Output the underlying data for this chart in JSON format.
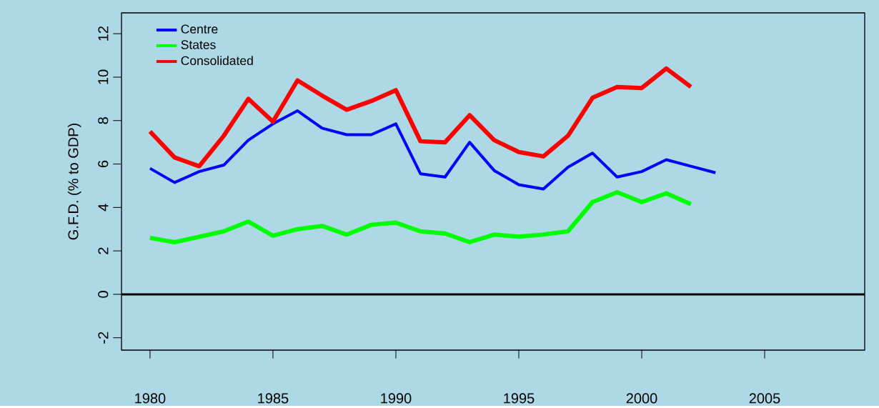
{
  "chart_data": {
    "type": "line",
    "ylabel": "G.F.D. (% to GDP)",
    "x": [
      1980,
      1981,
      1982,
      1983,
      1984,
      1985,
      1986,
      1987,
      1988,
      1989,
      1990,
      1991,
      1992,
      1993,
      1994,
      1995,
      1996,
      1997,
      1998,
      1999,
      2000,
      2001,
      2002,
      2003
    ],
    "series": [
      {
        "name": "Centre",
        "color": "#0000ff",
        "values": [
          5.8,
          5.15,
          5.65,
          5.95,
          7.1,
          7.85,
          8.45,
          7.65,
          7.35,
          7.35,
          7.85,
          5.55,
          5.4,
          7.0,
          5.7,
          5.05,
          4.85,
          5.85,
          6.5,
          5.4,
          5.65,
          6.2,
          5.9,
          5.6
        ]
      },
      {
        "name": "States",
        "color": "#00ff00",
        "values": [
          2.6,
          2.4,
          2.65,
          2.9,
          3.35,
          2.7,
          3.0,
          3.15,
          2.75,
          3.2,
          3.3,
          2.9,
          2.8,
          2.4,
          2.75,
          2.65,
          2.75,
          2.9,
          4.25,
          4.7,
          4.25,
          4.65,
          4.15,
          null
        ]
      },
      {
        "name": "Consolidated",
        "color": "#ff0000",
        "values": [
          7.5,
          6.3,
          5.9,
          7.3,
          9.0,
          7.95,
          9.85,
          9.15,
          8.5,
          8.9,
          9.4,
          7.05,
          7.0,
          8.25,
          7.1,
          6.55,
          6.35,
          7.3,
          9.05,
          9.55,
          9.5,
          10.4,
          9.55,
          null
        ]
      }
    ],
    "xlim": [
      1978.84,
      2009.07
    ],
    "ylim": [
      -2.57,
      12.96
    ],
    "xticks": [
      1980,
      1985,
      1990,
      1995,
      2000,
      2005
    ],
    "yticks": [
      -2,
      0,
      2,
      4,
      6,
      8,
      10,
      12
    ],
    "ref_lines": [
      {
        "axis": "y",
        "value": 0,
        "color": "#000000"
      }
    ],
    "legend": "top left",
    "grid": false,
    "marker": "none",
    "line_style": "solid"
  }
}
